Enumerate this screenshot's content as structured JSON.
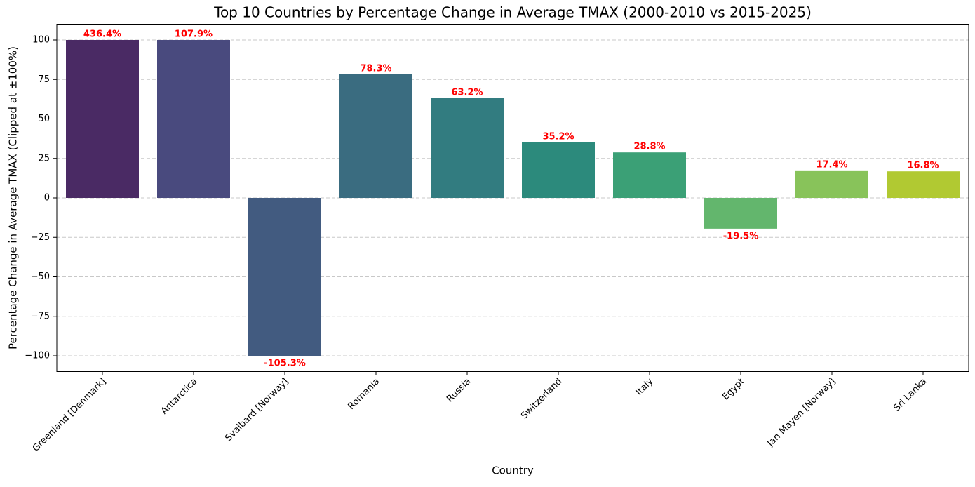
{
  "chart_data": {
    "type": "bar",
    "title": "Top 10 Countries by Percentage Change in Average TMAX (2000-2010 vs 2015-2025)",
    "xlabel": "Country",
    "ylabel": "Percentage Change in Average TMAX (Clipped at ±100%)",
    "categories": [
      "Greenland [Denmark]",
      "Antarctica",
      "Svalbard [Norway]",
      "Romania",
      "Russia",
      "Switzerland",
      "Italy",
      "Egypt",
      "Jan Mayen [Norway]",
      "Sri Lanka"
    ],
    "values": [
      100,
      100,
      -100,
      78.3,
      63.2,
      35.2,
      28.8,
      -19.5,
      17.4,
      16.8
    ],
    "colors": [
      "#4a2a64",
      "#494a7e",
      "#425b80",
      "#3a6c80",
      "#327c80",
      "#2c8a7c",
      "#3ba076",
      "#63b66d",
      "#88c35a",
      "#b1c932"
    ],
    "labels": {
      "values": [
        436.4,
        107.9,
        -105.3,
        78.3,
        63.2,
        35.2,
        28.8,
        -19.5,
        17.4,
        16.8
      ],
      "value_labels": [
        "436.4%",
        "107.9%",
        "-105.3%",
        "78.3%",
        "63.2%",
        "35.2%",
        "28.8%",
        "-19.5%",
        "17.4%",
        "16.8%"
      ],
      "color": "#ff0000"
    },
    "ylim": [
      -110,
      110
    ],
    "yticks": [
      {
        "value": -100,
        "label": "−100"
      },
      {
        "value": -75,
        "label": "−75"
      },
      {
        "value": -50,
        "label": "−50"
      },
      {
        "value": -25,
        "label": "−25"
      },
      0,
      25,
      50,
      75,
      100
    ],
    "grid": true
  }
}
